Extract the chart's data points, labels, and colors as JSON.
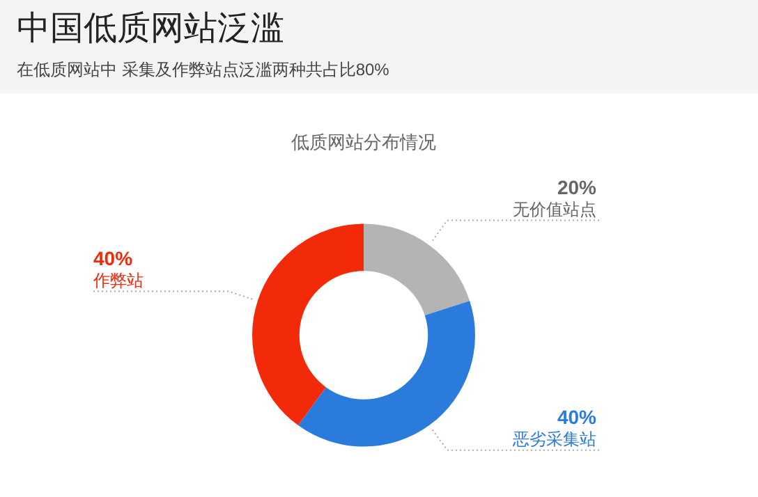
{
  "chart_data": {
    "type": "donut",
    "title": "中国低质网站泛滥",
    "subtitle": "在低质网站中 采集及作弊站点泛滥两种共占比80%",
    "annotations": [
      "低质网站分布情况"
    ],
    "categories": [
      "无价值站点",
      "恶劣采集站",
      "作弊站"
    ],
    "values": [
      20,
      40,
      40
    ],
    "value_labels": [
      "20%",
      "40%",
      "40%"
    ],
    "colors": [
      "#b4b4b4",
      "#2a7bdc",
      "#f22a0a"
    ],
    "legend": false
  }
}
